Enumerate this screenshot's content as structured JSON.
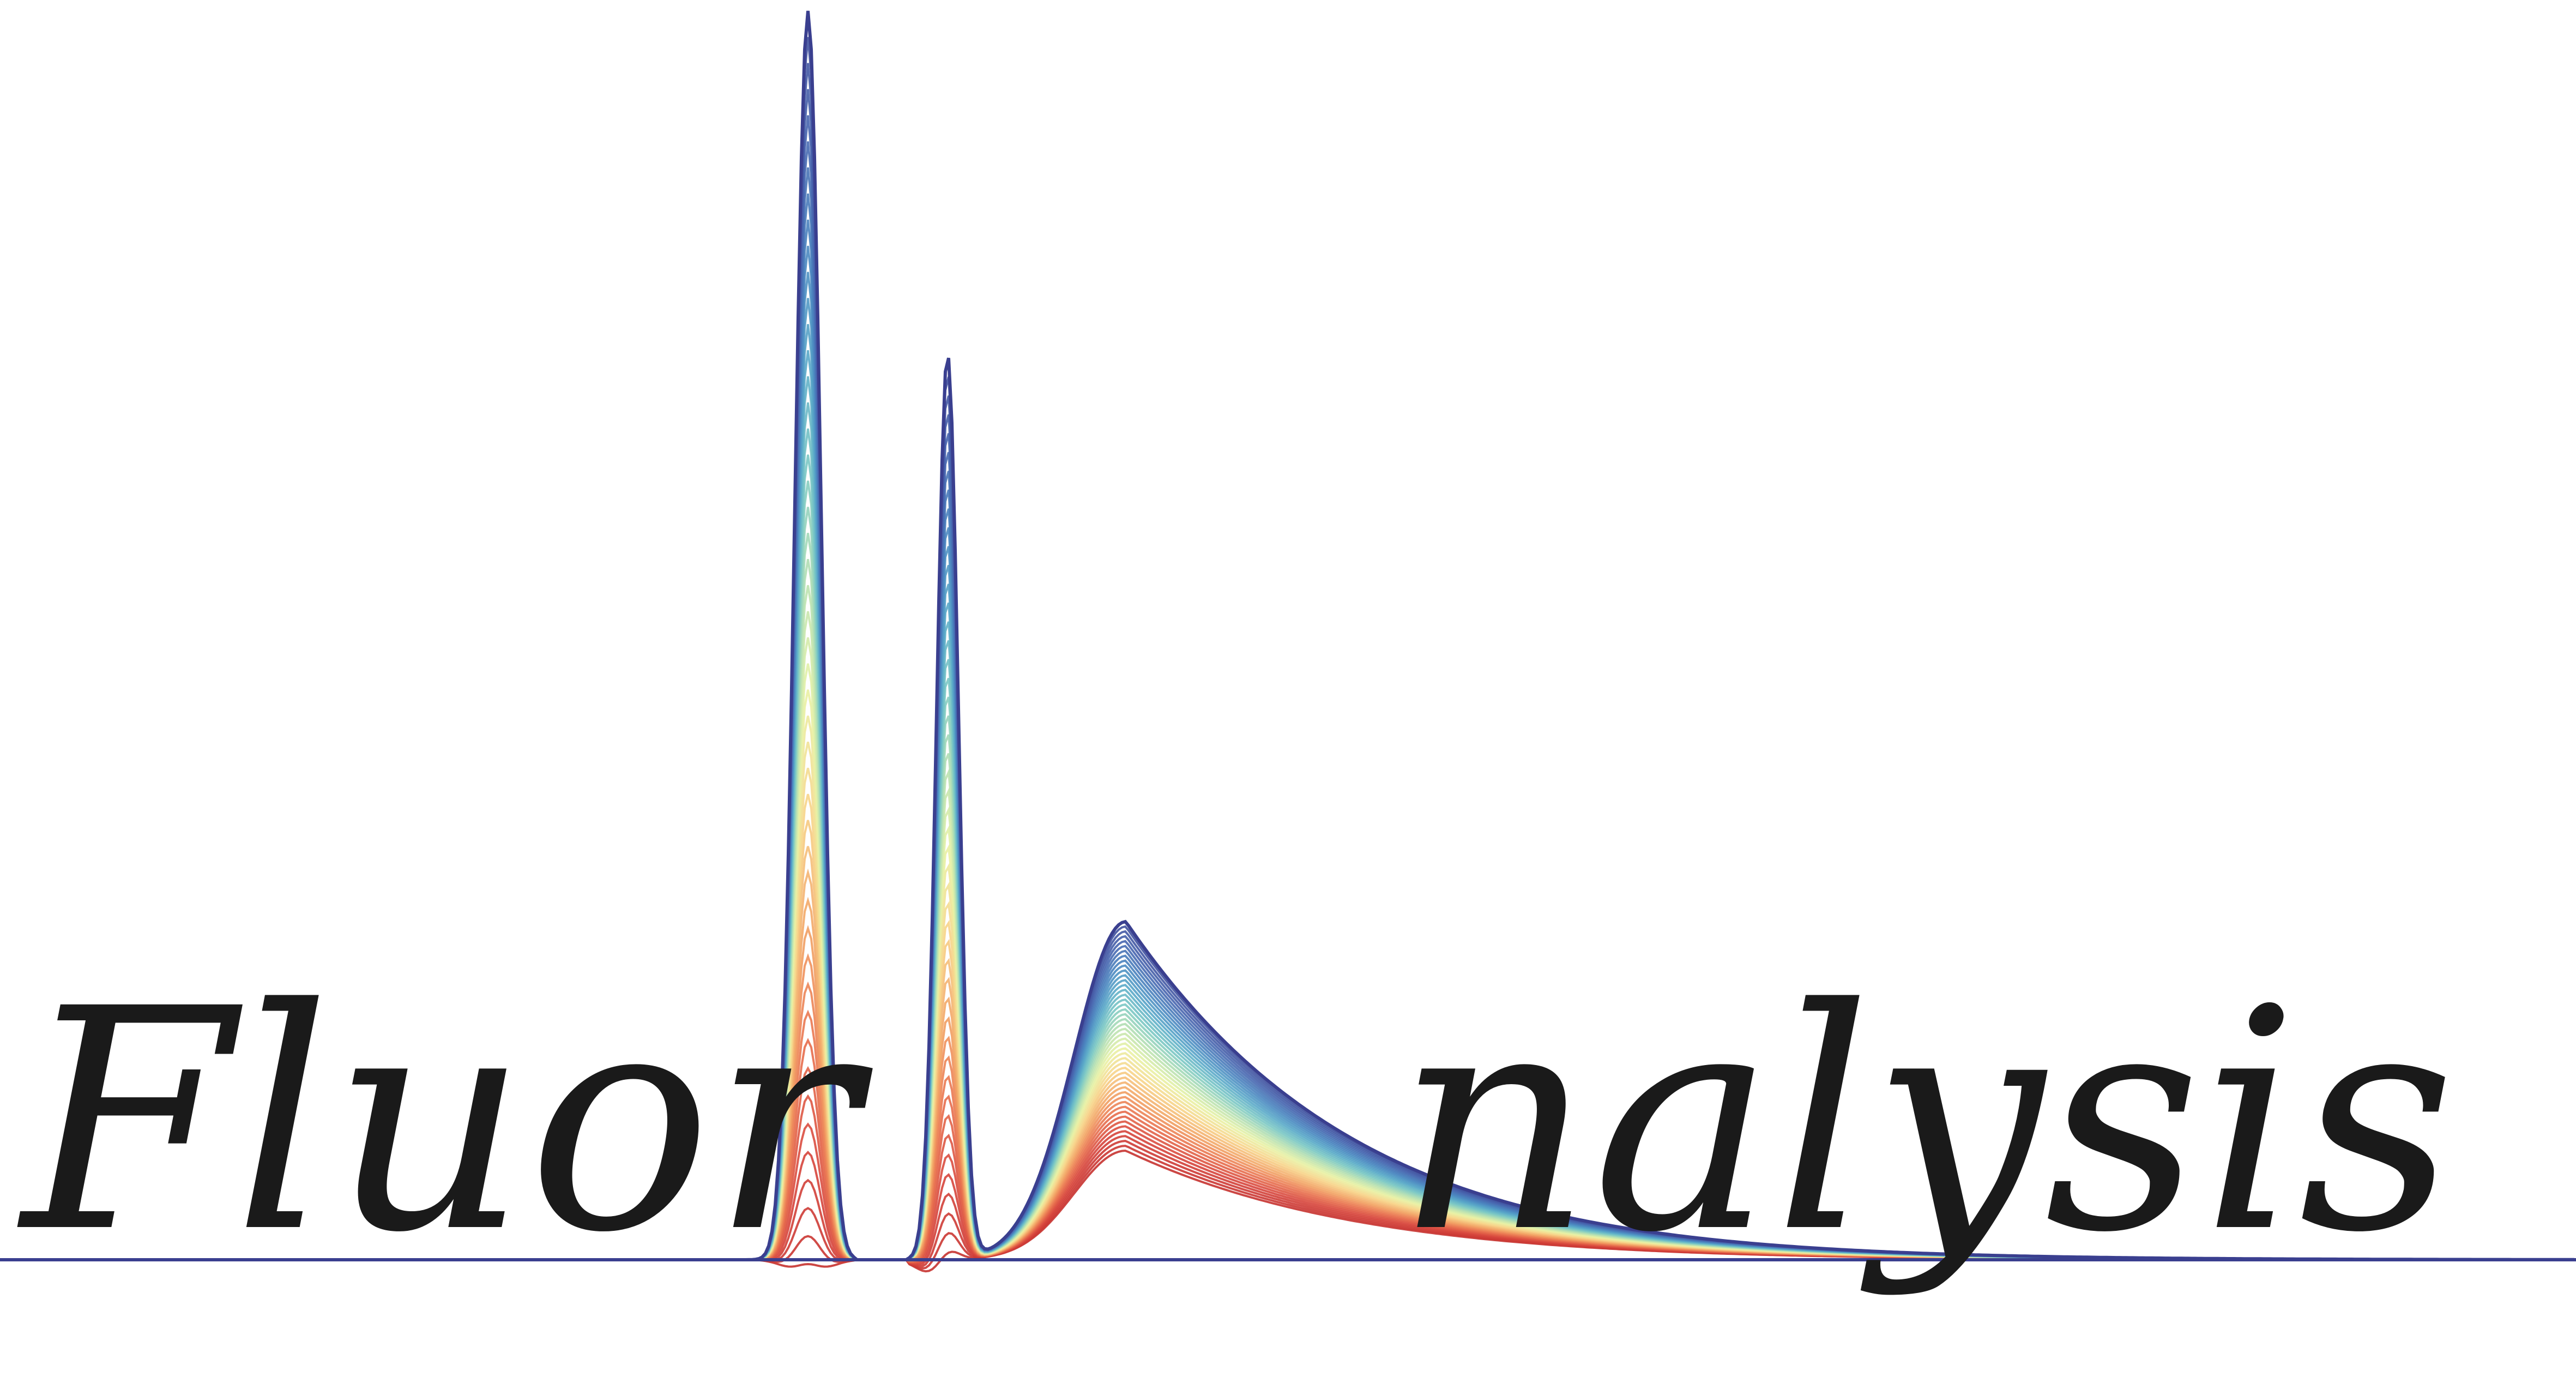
{
  "logo": {
    "wordmark_left": "Fluor",
    "wordmark_right": "nalysis",
    "text_color": "#1a1a1a"
  },
  "spectra": {
    "description_colors": [
      "#3d4a9a",
      "#4867b0",
      "#4a86c0",
      "#5aa9c9",
      "#7cc9c4",
      "#b6e0b2",
      "#e9f2a5",
      "#f7d58b",
      "#f3a868",
      "#e9734f",
      "#d7463d",
      "#c73330"
    ],
    "curve_count": 48
  }
}
